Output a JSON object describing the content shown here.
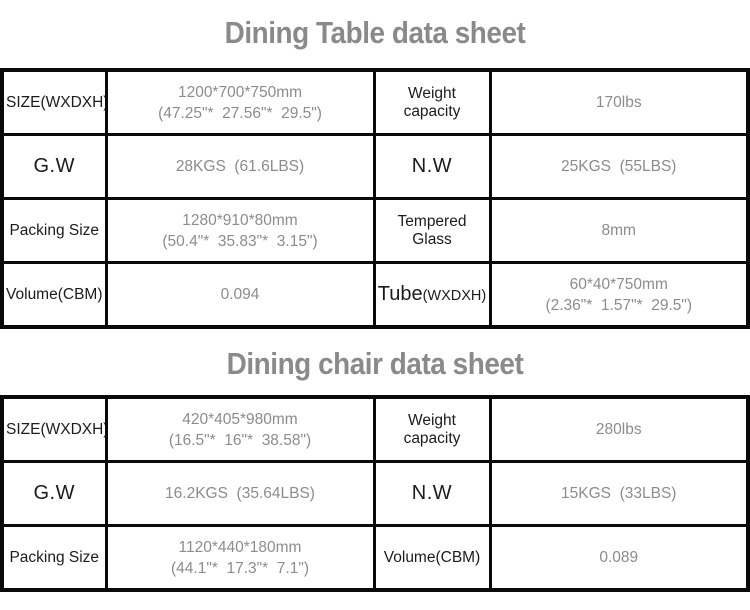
{
  "page": {
    "background_color": "#ffffff",
    "border_color": "#0a0a0a",
    "title_color": "#8a8a8a",
    "label_color": "#1c1c1c",
    "value_color": "#8c8c8c"
  },
  "table_sheet": {
    "title": "Dining Table data sheet",
    "rows": [
      {
        "label": "SIZE(WXDXH)",
        "value": "1200*700*750mm\n(47.25\"*  27.56\"*  29.5\")",
        "label2": "Weight capacity",
        "value2": "170lbs"
      },
      {
        "label": "G.W",
        "value": "28KGS  (61.6LBS)",
        "label2": "N.W",
        "value2": "25KGS  (55LBS)"
      },
      {
        "label": "Packing Size",
        "value": "1280*910*80mm\n(50.4\"*  35.83\"*  3.15\")",
        "label2": "Tempered Glass",
        "value2": "8mm"
      },
      {
        "label": "Volume(CBM)",
        "value": "0.094",
        "label2": "Tube",
        "label2_suffix": "(WXDXH)",
        "value2": "60*40*750mm\n(2.36\"*  1.57\"*  29.5\")"
      }
    ]
  },
  "chair_sheet": {
    "title": "Dining chair data sheet",
    "rows": [
      {
        "label": "SIZE(WXDXH)",
        "value": "420*405*980mm\n(16.5\"*  16\"*  38.58\")",
        "label2": "Weight capacity",
        "value2": "280lbs"
      },
      {
        "label": "G.W",
        "value": "16.2KGS  (35.64LBS)",
        "label2": "N.W",
        "value2": "15KGS  (33LBS)"
      },
      {
        "label": "Packing Size",
        "value": "1120*440*180mm\n(44.1\"*  17.3\"*  7.1\")",
        "label2": "Volume(CBM)",
        "value2": "0.089"
      }
    ]
  }
}
